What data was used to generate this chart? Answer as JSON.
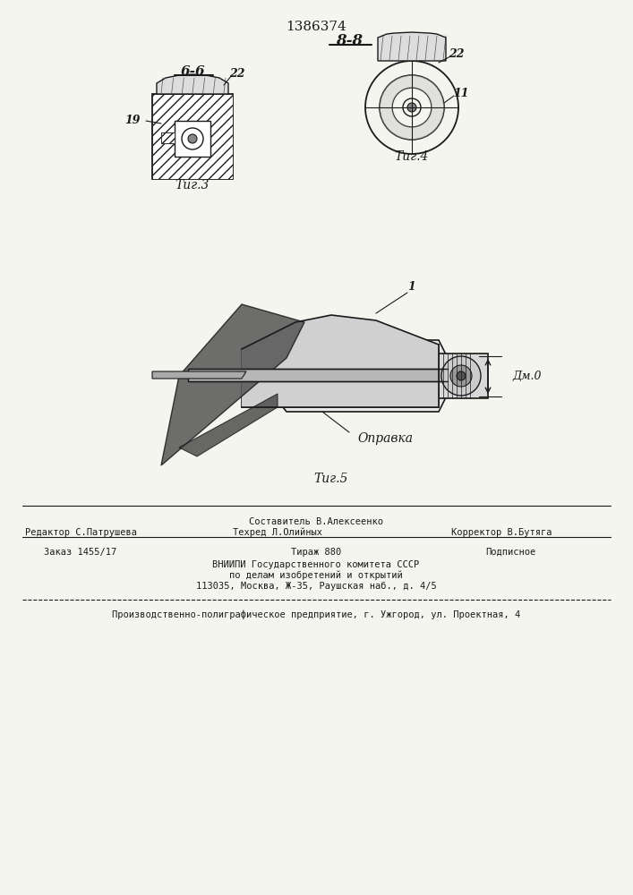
{
  "patent_number": "1386374",
  "bg_color": "#f5f5f0",
  "line_color": "#1a1a1a",
  "hatch_color": "#1a1a1a",
  "fig_width": 7.07,
  "fig_height": 10.0,
  "top_label": "1386374",
  "section_label_BB": "8-8",
  "section_label_6b": "6-6",
  "fig3_label": "Τиг.3",
  "fig4_label": "Τиг.4",
  "fig5_label": "Τиг.5",
  "label_19": "19",
  "label_22_left": "22",
  "label_22_right": "22",
  "label_11": "11",
  "label_1": "1",
  "label_dm0": "Дм.0",
  "label_opravka": "Оправка",
  "footer_line1_left": "Редактор С.Патрушева",
  "footer_line1_center": "Составитель В.Алексеенко",
  "footer_line2_center": "Техред Л.Олийных",
  "footer_line2_right": "Корректор В.Бутяга",
  "footer_line3_left": "Заказ 1455/17",
  "footer_line3_center": "Тираж 880",
  "footer_line3_right": "Подписное",
  "footer_line4": "ВНИИПИ Государственного комитета СССР",
  "footer_line5": "по делам изобретений и открытий",
  "footer_line6": "113035, Москва, Ж-35, Раушская наб., д. 4/5",
  "footer_line7": "Производственно-полиграфическое предприятие, г. Ужгород, ул. Проектная, 4"
}
